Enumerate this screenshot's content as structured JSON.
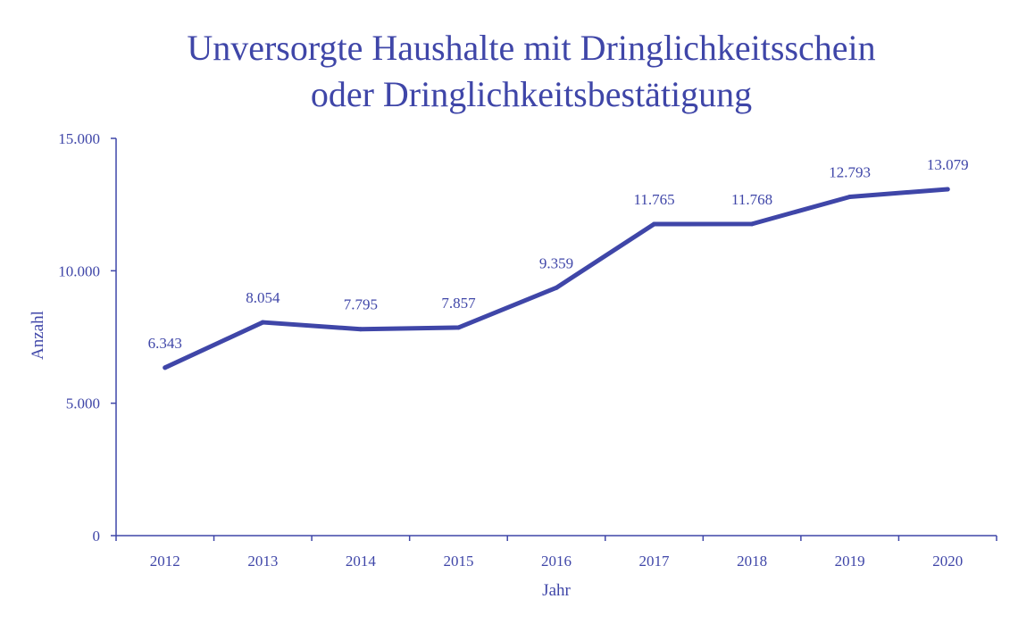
{
  "chart_data": {
    "type": "line",
    "title_lines": [
      "Unversorgte Haushalte mit Dringlichkeitsschein",
      "oder Dringlichkeitsbestätigung"
    ],
    "xlabel": "Jahr",
    "ylabel": "Anzahl",
    "categories": [
      "2012",
      "2013",
      "2014",
      "2015",
      "2016",
      "2017",
      "2018",
      "2019",
      "2020"
    ],
    "series": [
      {
        "values": [
          6343,
          8054,
          7795,
          7857,
          9359,
          11765,
          11768,
          12793,
          13079
        ],
        "labels": [
          "6.343",
          "8.054",
          "7.795",
          "7.857",
          "9.359",
          "11.765",
          "11.768",
          "12.793",
          "13.079"
        ]
      }
    ],
    "ylim": [
      0,
      15000
    ],
    "yticks": [
      0,
      5000,
      10000,
      15000
    ],
    "ytick_labels": [
      "0",
      "5.000",
      "10.000",
      "15.000"
    ],
    "grid": false,
    "legend": "none",
    "colors": {
      "line": "#3f46a8",
      "text": "#3f46a8",
      "axis": "#3f46a8"
    }
  }
}
